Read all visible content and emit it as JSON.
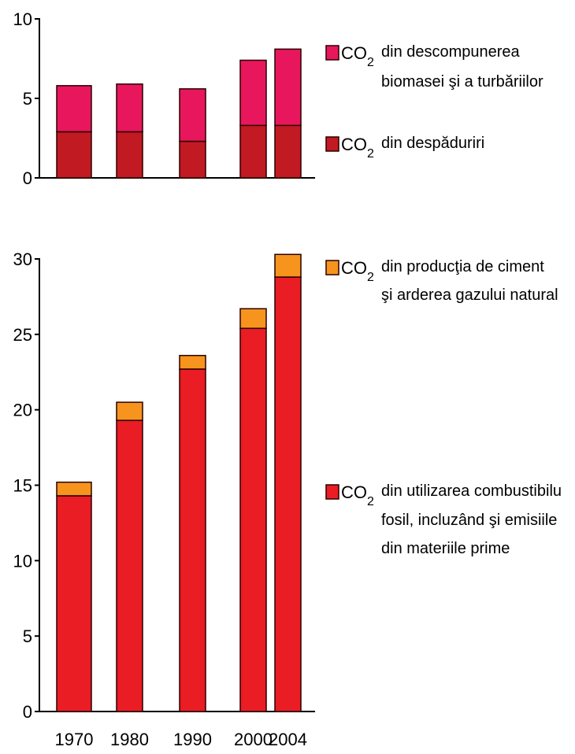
{
  "chart_data": [
    {
      "type": "bar",
      "stacked": true,
      "categories": [
        "1970",
        "1980",
        "1990",
        "2000",
        "2004"
      ],
      "ylim": [
        0,
        10
      ],
      "yticks": [
        "0",
        "5",
        "10"
      ],
      "series": [
        {
          "name_prefix": "CO",
          "name_sub": "2",
          "name_lines": [
            "din despăduriri"
          ],
          "values": [
            2.9,
            2.9,
            2.3,
            3.3,
            3.3
          ],
          "color": "#c21a22"
        },
        {
          "name_prefix": "CO",
          "name_sub": "2",
          "name_lines": [
            "din descompunerea",
            "biomasei şi a turbăriilor"
          ],
          "values": [
            2.9,
            3.0,
            3.3,
            4.1,
            4.8
          ],
          "color": "#e8175d"
        }
      ]
    },
    {
      "type": "bar",
      "stacked": true,
      "categories": [
        "1970",
        "1980",
        "1990",
        "2000",
        "2004"
      ],
      "ylim": [
        0,
        30
      ],
      "yticks": [
        "0",
        "5",
        "10",
        "15",
        "20",
        "25",
        "30"
      ],
      "series": [
        {
          "name_prefix": "CO",
          "name_sub": "2",
          "name_lines": [
            "din utilizarea combustibilu",
            "fosil, incluzând şi emisiile",
            "din materiile prime"
          ],
          "values": [
            14.3,
            19.3,
            22.7,
            25.4,
            28.8
          ],
          "color": "#ea1c24"
        },
        {
          "name_prefix": "CO",
          "name_sub": "2",
          "name_lines": [
            "din producţia de ciment",
            "şi arderea gazului natural"
          ],
          "values": [
            0.9,
            1.2,
            0.9,
            1.3,
            1.5
          ],
          "color": "#f7941d"
        }
      ]
    }
  ]
}
